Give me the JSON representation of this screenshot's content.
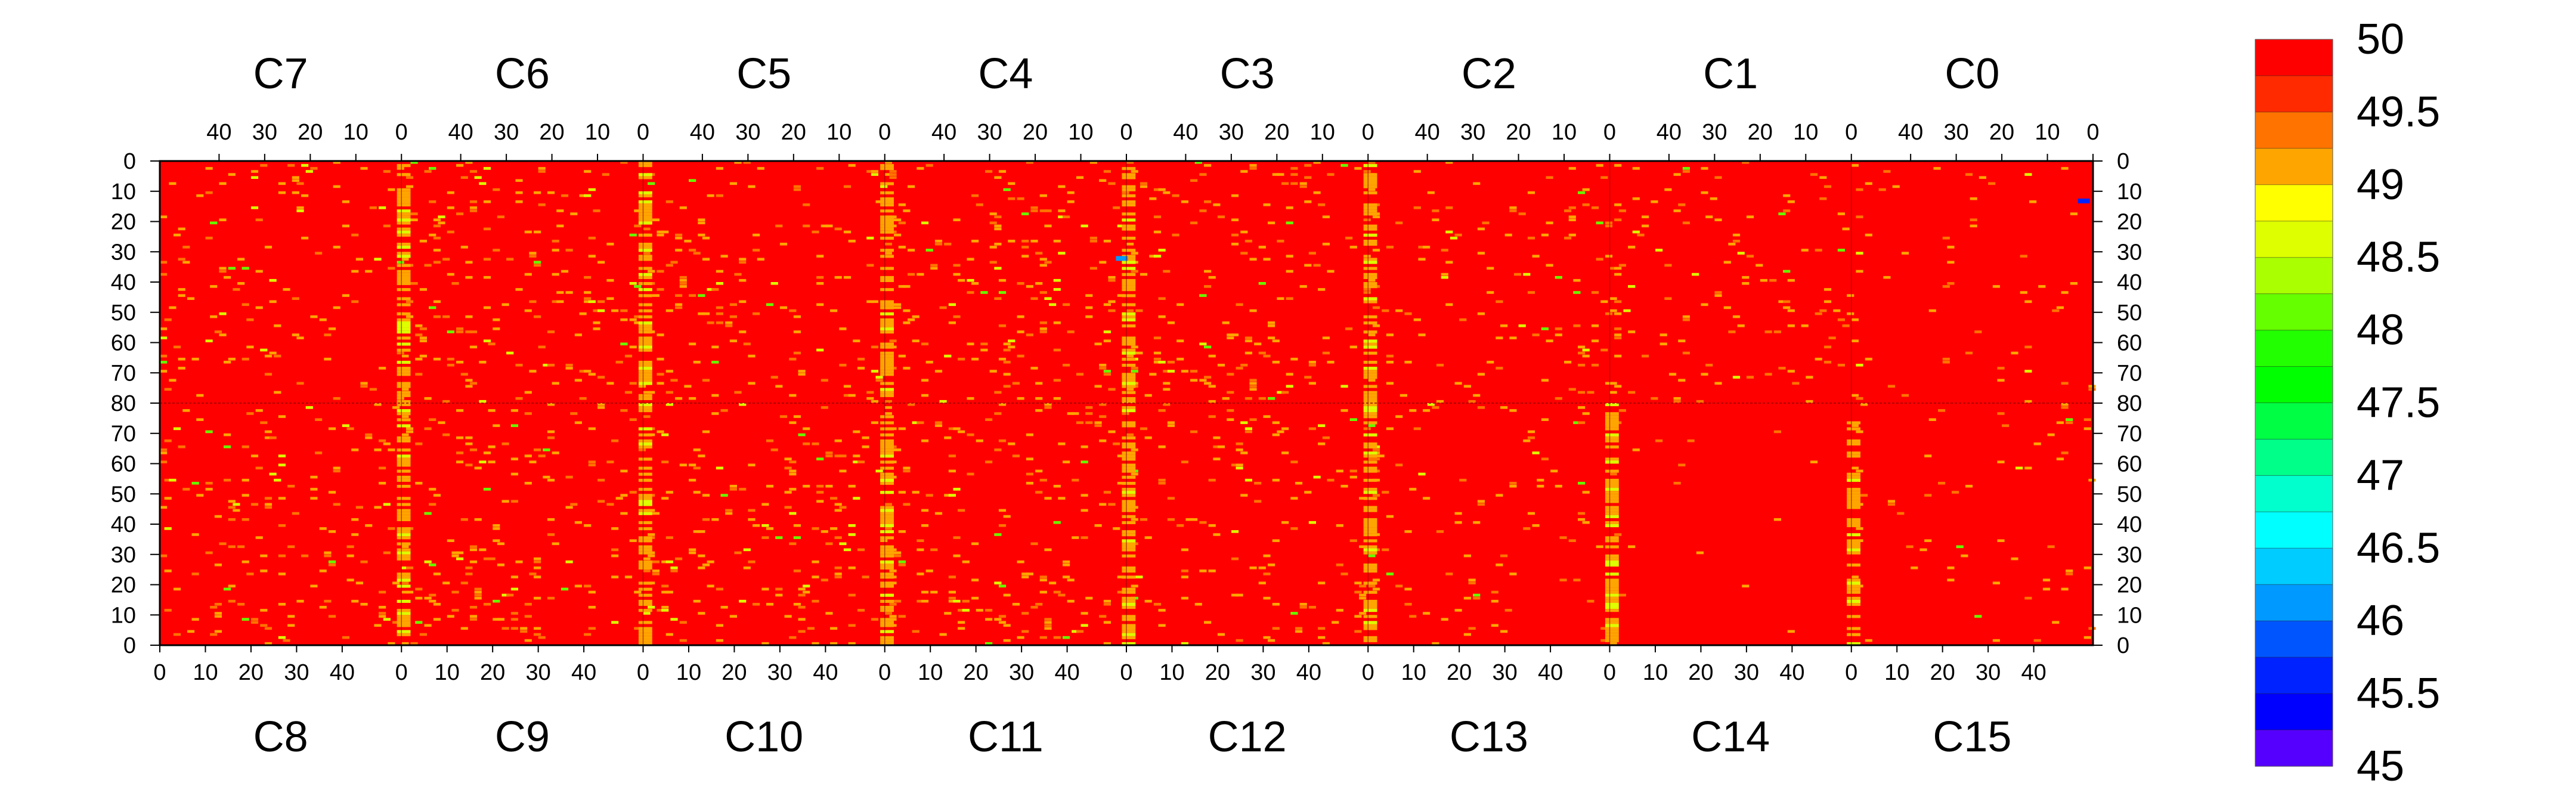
{
  "chart_data": {
    "type": "heatmap",
    "title": "",
    "xlabel": "",
    "ylabel": "",
    "top_chips": [
      "C7",
      "C6",
      "C5",
      "C4",
      "C3",
      "C2",
      "C1",
      "C0"
    ],
    "bottom_chips": [
      "C8",
      "C9",
      "C10",
      "C11",
      "C12",
      "C13",
      "C14",
      "C15"
    ],
    "top_x_ticks": [
      "40",
      "30",
      "20",
      "10",
      "0"
    ],
    "bottom_x_ticks": [
      "0",
      "10",
      "20",
      "30",
      "40"
    ],
    "x_range_per_chip": [
      0,
      53
    ],
    "top_half_y_ticks": [
      "0",
      "10",
      "20",
      "30",
      "40",
      "50",
      "60",
      "70",
      "80"
    ],
    "bottom_half_y_ticks": [
      "70",
      "60",
      "50",
      "40",
      "30",
      "20",
      "10",
      "0"
    ],
    "y_range_per_half": [
      0,
      80
    ],
    "value_range": [
      45,
      50
    ],
    "background_value": 50,
    "colorbar": {
      "ticks": [
        "50",
        "49.5",
        "49",
        "48.5",
        "48",
        "47.5",
        "47",
        "46.5",
        "46",
        "45.5",
        "45"
      ],
      "levels": [
        {
          "from": 49.75,
          "to": 50,
          "color": "#ff0000"
        },
        {
          "from": 49.5,
          "to": 49.75,
          "color": "#ff2a00"
        },
        {
          "from": 49.25,
          "to": 49.5,
          "color": "#ff7300"
        },
        {
          "from": 49,
          "to": 49.25,
          "color": "#ffa500"
        },
        {
          "from": 48.75,
          "to": 49,
          "color": "#ffff00"
        },
        {
          "from": 48.5,
          "to": 48.75,
          "color": "#ddff00"
        },
        {
          "from": 48.25,
          "to": 48.5,
          "color": "#aaff00"
        },
        {
          "from": 48,
          "to": 48.25,
          "color": "#66ff00"
        },
        {
          "from": 47.75,
          "to": 48,
          "color": "#22ff00"
        },
        {
          "from": 47.5,
          "to": 47.75,
          "color": "#00ff00"
        },
        {
          "from": 47.25,
          "to": 47.5,
          "color": "#00ff44"
        },
        {
          "from": 47,
          "to": 47.25,
          "color": "#00ff88"
        },
        {
          "from": 46.75,
          "to": 47,
          "color": "#00ffcc"
        },
        {
          "from": 46.5,
          "to": 46.75,
          "color": "#00ffff"
        },
        {
          "from": 46.25,
          "to": 46.5,
          "color": "#00ccff"
        },
        {
          "from": 46,
          "to": 46.25,
          "color": "#0099ff"
        },
        {
          "from": 45.75,
          "to": 46,
          "color": "#0055ff"
        },
        {
          "from": 45.5,
          "to": 45.75,
          "color": "#0022ff"
        },
        {
          "from": 45.25,
          "to": 45.5,
          "color": "#0000ff"
        },
        {
          "from": 45,
          "to": 45.25,
          "color": "#5500ff"
        }
      ]
    },
    "noise_density_by_chip": {
      "top": [
        0.05,
        0.06,
        0.06,
        0.07,
        0.06,
        0.05,
        0.04,
        0.03
      ],
      "bottom": [
        0.05,
        0.07,
        0.07,
        0.06,
        0.06,
        0.03,
        0.01,
        0.02
      ]
    },
    "hot_columns": [
      {
        "half": "top",
        "chip": 1,
        "value": 49
      },
      {
        "half": "top",
        "chip": 2,
        "value": 49
      },
      {
        "half": "top",
        "chip": 3,
        "value": 49
      },
      {
        "half": "top",
        "chip": 4,
        "value": 49
      },
      {
        "half": "top",
        "chip": 5,
        "value": 49
      },
      {
        "half": "bottom",
        "chip": 1,
        "value": 49
      },
      {
        "half": "bottom",
        "chip": 2,
        "value": 49
      },
      {
        "half": "bottom",
        "chip": 3,
        "value": 49
      },
      {
        "half": "bottom",
        "chip": 4,
        "value": 49
      },
      {
        "half": "bottom",
        "chip": 5,
        "value": 49
      },
      {
        "half": "bottom",
        "chip": 6,
        "value": 49
      },
      {
        "half": "bottom",
        "chip": 7,
        "value": 49
      }
    ],
    "outliers": [
      {
        "chip": "C0",
        "x": 2,
        "y": 13,
        "value": 45.5
      },
      {
        "chip": "C4",
        "x": 1,
        "y": 32,
        "value": 46
      }
    ]
  }
}
